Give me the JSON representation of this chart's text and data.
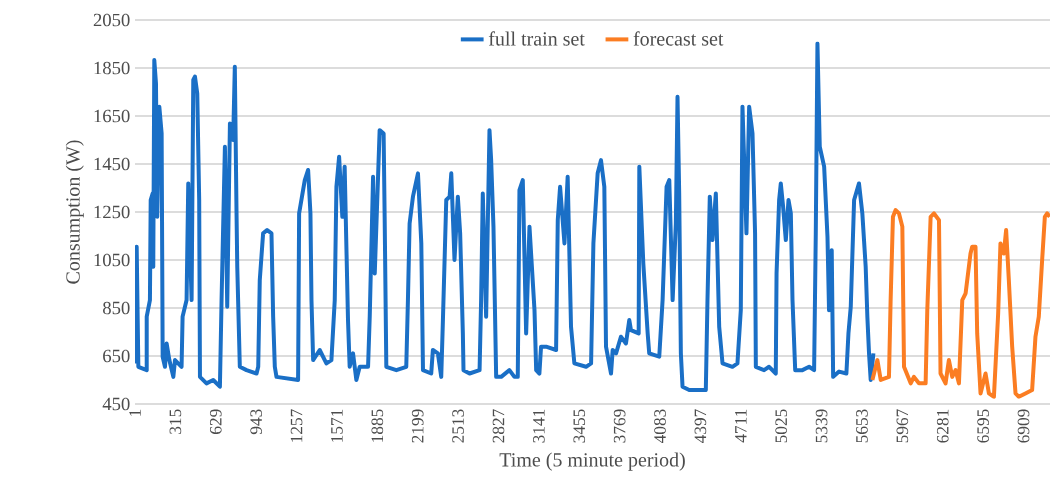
{
  "chart_data": {
    "type": "line",
    "xlabel": "Time (5 minute period)",
    "ylabel": "Consumption (W)",
    "xlim": [
      1,
      7115
    ],
    "ylim": [
      450,
      2050
    ],
    "xticks": [
      1,
      315,
      629,
      943,
      1257,
      1571,
      1885,
      2199,
      2513,
      2827,
      3141,
      3455,
      3769,
      4083,
      4397,
      4711,
      5025,
      5339,
      5653,
      5967,
      6281,
      6595,
      6909
    ],
    "yticks": [
      450,
      650,
      850,
      1050,
      1250,
      1450,
      1650,
      1850,
      2050
    ],
    "grid": "y",
    "legend": "top",
    "marker": "none",
    "line_style": "solid",
    "series": [
      {
        "name": "full train set",
        "color": "#1a6fc6",
        "x": [
          1,
          14,
          27,
          92,
          92,
          117,
          123,
          138,
          143,
          151,
          164,
          174,
          190,
          208,
          216,
          234,
          247,
          268,
          299,
          312,
          363,
          371,
          402,
          415,
          441,
          454,
          467,
          485,
          500,
          506,
          557,
          609,
          661,
          674,
          700,
          718,
          739,
          764,
          777,
          790,
          796,
          816,
          868,
          946,
          959,
          971,
          997,
          1028,
          1062,
          1075,
          1088,
          1101,
          1269,
          1277,
          1321,
          1347,
          1365,
          1373,
          1386,
          1437,
          1489,
          1528,
          1554,
          1567,
          1588,
          1613,
          1631,
          1657,
          1670,
          1696,
          1722,
          1748,
          1787,
          1813,
          1826,
          1852,
          1865,
          1903,
          1934,
          1942,
          1955,
          2033,
          2110,
          2123,
          2136,
          2162,
          2201,
          2227,
          2240,
          2304,
          2317,
          2356,
          2382,
          2395,
          2421,
          2447,
          2460,
          2485,
          2511,
          2529,
          2550,
          2555,
          2602,
          2680,
          2692,
          2705,
          2731,
          2757,
          2770,
          2788,
          2809,
          2848,
          2912,
          2951,
          2977,
          2990,
          3016,
          3042,
          3068,
          3107,
          3120,
          3145,
          3158,
          3197,
          3275,
          3288,
          3306,
          3340,
          3365,
          3391,
          3417,
          3508,
          3547,
          3565,
          3598,
          3624,
          3650,
          3663,
          3702,
          3715,
          3741,
          3779,
          3818,
          3844,
          3857,
          3917,
          3922,
          3953,
          3987,
          3999,
          4077,
          4103,
          4134,
          4155,
          4181,
          4206,
          4219,
          4232,
          4245,
          4258,
          4310,
          4439,
          4452,
          4470,
          4491,
          4517,
          4543,
          4569,
          4646,
          4685,
          4711,
          4724,
          4755,
          4776,
          4802,
          4822,
          4828,
          4892,
          4931,
          4983,
          4989,
          5009,
          5022,
          5040,
          5061,
          5082,
          5100,
          5113,
          5134,
          5190,
          5242,
          5281,
          5294,
          5307,
          5325,
          5359,
          5385,
          5397,
          5418,
          5429,
          5475,
          5532,
          5548,
          5566,
          5592,
          5630,
          5656,
          5682,
          5695,
          5708,
          5721,
          5742
        ],
        "values": [
          619,
          1105,
          605,
          591,
          814,
          883,
          1300,
          1327,
          1022,
          1883,
          1786,
          1230,
          1689,
          1577,
          647,
          605,
          702,
          633,
          563,
          633,
          605,
          814,
          883,
          1369,
          883,
          1800,
          1814,
          1744,
          1300,
          563,
          536,
          550,
          522,
          883,
          1522,
          855,
          1619,
          1550,
          1855,
          1258,
          1022,
          605,
          591,
          577,
          605,
          966,
          1161,
          1175,
          1161,
          814,
          605,
          563,
          550,
          1244,
          1383,
          1425,
          1244,
          883,
          633,
          675,
          619,
          633,
          883,
          1355,
          1480,
          1230,
          1439,
          800,
          605,
          661,
          550,
          605,
          605,
          605,
          814,
          1397,
          994,
          1591,
          1577,
          1230,
          605,
          591,
          605,
          883,
          1202,
          1314,
          1411,
          1119,
          591,
          577,
          675,
          661,
          563,
          800,
          1300,
          1314,
          1411,
          1050,
          1314,
          1161,
          744,
          591,
          577,
          591,
          883,
          1327,
          814,
          1591,
          1466,
          1189,
          563,
          563,
          591,
          563,
          563,
          1341,
          1383,
          744,
          1189,
          841,
          591,
          577,
          689,
          689,
          675,
          1216,
          1355,
          1119,
          1397,
          772,
          619,
          605,
          619,
          1119,
          1411,
          1466,
          1355,
          689,
          577,
          675,
          661,
          730,
          702,
          800,
          758,
          744,
          1439,
          1036,
          744,
          661,
          647,
          883,
          1355,
          1383,
          883,
          1202,
          1730,
          1327,
          661,
          522,
          508,
          508,
          883,
          1314,
          1133,
          1327,
          772,
          619,
          605,
          619,
          841,
          1689,
          1161,
          1689,
          1577,
          1161,
          605,
          591,
          605,
          577,
          994,
          1300,
          1369,
          1272,
          1133,
          1300,
          1244,
          883,
          591,
          591,
          605,
          591,
          1161,
          1952,
          1522,
          1439,
          1147,
          841,
          1091,
          563,
          585,
          577,
          744,
          855,
          1300,
          1369,
          1244,
          1022,
          814,
          661,
          550,
          661
        ]
      },
      {
        "name": "forecast set",
        "color": "#fb7d22",
        "x": [
          5734,
          5773,
          5799,
          5863,
          5876,
          5894,
          5915,
          5941,
          5967,
          5980,
          6032,
          6057,
          6096,
          6148,
          6161,
          6187,
          6213,
          6252,
          6264,
          6303,
          6329,
          6355,
          6381,
          6407,
          6433,
          6459,
          6497,
          6510,
          6536,
          6549,
          6575,
          6614,
          6640,
          6679,
          6712,
          6730,
          6756,
          6774,
          6795,
          6821,
          6847,
          6873,
          6924,
          6976,
          7002,
          7028,
          7054,
          7075,
          7093,
          7113
        ],
        "values": [
          550,
          633,
          550,
          563,
          883,
          1230,
          1258,
          1244,
          1189,
          605,
          536,
          563,
          536,
          536,
          841,
          1230,
          1244,
          1216,
          577,
          536,
          633,
          563,
          591,
          536,
          883,
          911,
          1077,
          1105,
          1105,
          744,
          494,
          577,
          494,
          480,
          827,
          1119,
          1077,
          1175,
          966,
          689,
          494,
          480,
          494,
          508,
          730,
          814,
          1050,
          1230,
          1244,
          1230
        ]
      }
    ]
  }
}
